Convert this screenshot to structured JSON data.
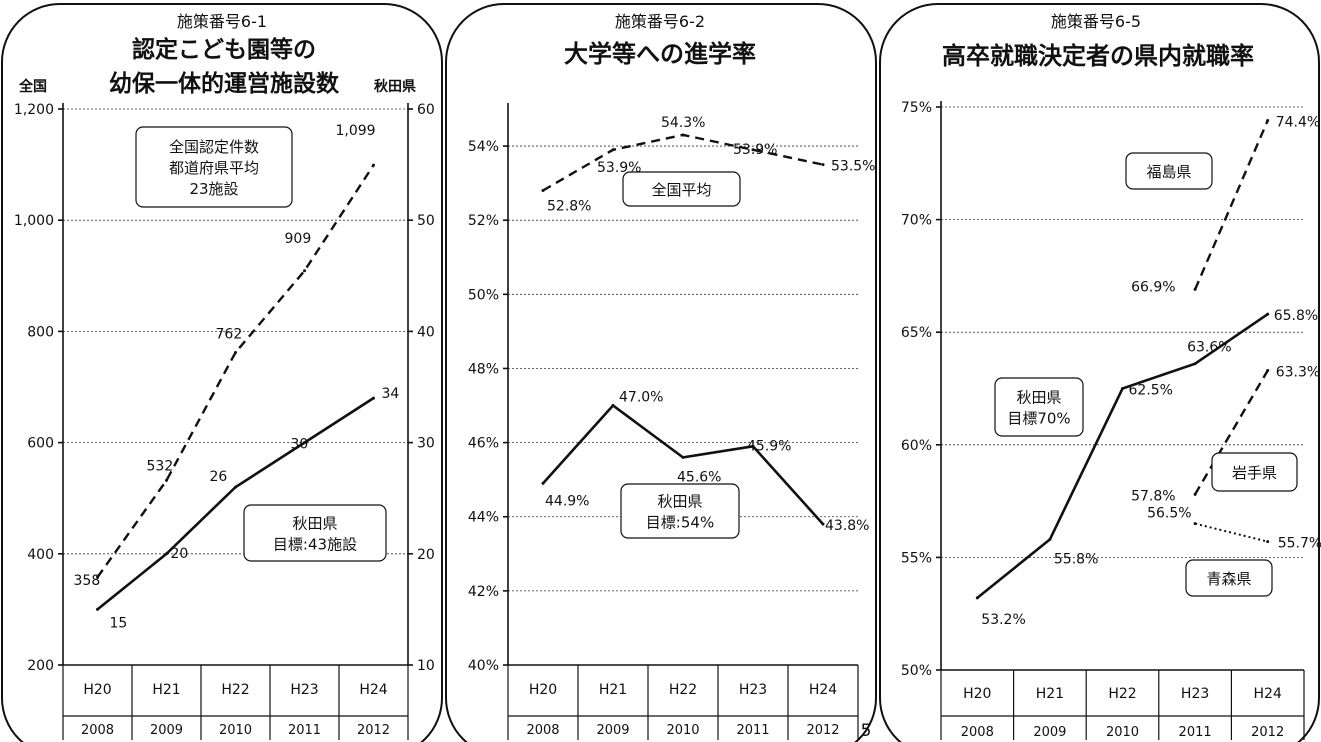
{
  "page_number": "5",
  "chart_data": [
    {
      "type": "line",
      "kicker": "施策番号6-1",
      "title_lines": [
        "認定こども園等の",
        "幼保一体的運営施設数"
      ],
      "y_left_label": "全国",
      "y_right_label": "秋田県",
      "ylim_left": [
        200,
        1200
      ],
      "ylim_right": [
        10,
        60
      ],
      "ticks_left": [
        "200",
        "400",
        "600",
        "800",
        "1,000",
        "1,200"
      ],
      "ticks_right": [
        "10",
        "20",
        "30",
        "40",
        "50",
        "60"
      ],
      "categories": [
        "H20",
        "H21",
        "H22",
        "H23",
        "H24"
      ],
      "categories_year": [
        "2008",
        "2009",
        "2010",
        "2011",
        "2012"
      ],
      "grid": true,
      "series": [
        {
          "values": [
            358,
            532,
            762,
            909,
            1099
          ],
          "value_labels": [
            "358",
            "532",
            "762",
            "909",
            "1,099"
          ],
          "style": "dashed",
          "axis": "left"
        },
        {
          "values": [
            15,
            20,
            26,
            30,
            34
          ],
          "value_labels": [
            "15",
            "20",
            "26",
            "30",
            "34"
          ],
          "style": "solid",
          "axis": "right"
        }
      ],
      "annotations": [
        {
          "lines": [
            "全国認定件数",
            "都道府県平均",
            "23施設"
          ]
        },
        {
          "lines": [
            "秋田県",
            "目標:43施設"
          ]
        }
      ]
    },
    {
      "type": "line",
      "kicker": "施策番号6-2",
      "title_lines": [
        "大学等への進学率"
      ],
      "ylim": [
        40,
        55
      ],
      "ticks": [
        "40%",
        "42%",
        "44%",
        "46%",
        "48%",
        "50%",
        "52%",
        "54%"
      ],
      "categories": [
        "H20",
        "H21",
        "H22",
        "H23",
        "H24"
      ],
      "categories_year": [
        "2008",
        "2009",
        "2010",
        "2011",
        "2012"
      ],
      "grid": true,
      "series": [
        {
          "values": [
            52.8,
            53.9,
            54.3,
            53.9,
            53.5
          ],
          "value_labels": [
            "52.8%",
            "53.9%",
            "54.3%",
            "53.9%",
            "53.5%"
          ],
          "style": "dashed"
        },
        {
          "values": [
            44.9,
            47.0,
            45.6,
            45.9,
            43.8
          ],
          "value_labels": [
            "44.9%",
            "47.0%",
            "45.6%",
            "45.9%",
            "43.8%"
          ],
          "style": "solid"
        }
      ],
      "annotations": [
        {
          "lines": [
            "全国平均"
          ]
        },
        {
          "lines": [
            "秋田県",
            "目標:54%"
          ]
        }
      ]
    },
    {
      "type": "line",
      "kicker": "施策番号6-5",
      "title_lines": [
        "高卒就職決定者の県内就職率"
      ],
      "ylim": [
        50,
        75
      ],
      "ticks": [
        "50%",
        "55%",
        "60%",
        "65%",
        "70%",
        "75%"
      ],
      "categories": [
        "H20",
        "H21",
        "H22",
        "H23",
        "H24"
      ],
      "categories_year": [
        "2008",
        "2009",
        "2010",
        "2011",
        "2012"
      ],
      "grid": true,
      "series": [
        {
          "values": [
            53.2,
            55.8,
            62.5,
            63.6,
            65.8
          ],
          "value_labels": [
            "53.2%",
            "55.8%",
            "62.5%",
            "63.6%",
            "65.8%"
          ],
          "style": "solid"
        },
        {
          "values": [
            null,
            null,
            null,
            66.9,
            74.4
          ],
          "value_labels": [
            "",
            "",
            "",
            "66.9%",
            "74.4%"
          ],
          "style": "dashed"
        },
        {
          "values": [
            null,
            null,
            null,
            57.8,
            63.3
          ],
          "value_labels": [
            "",
            "",
            "",
            "57.8%",
            "63.3%"
          ],
          "style": "dashed"
        },
        {
          "values": [
            null,
            null,
            null,
            56.5,
            55.7
          ],
          "value_labels": [
            "",
            "",
            "",
            "56.5%",
            "55.7%"
          ],
          "style": "dotted"
        }
      ],
      "annotations": [
        {
          "lines": [
            "福島県"
          ]
        },
        {
          "lines": [
            "秋田県",
            "目標70%"
          ]
        },
        {
          "lines": [
            "岩手県"
          ]
        },
        {
          "lines": [
            "青森県"
          ]
        }
      ]
    }
  ]
}
